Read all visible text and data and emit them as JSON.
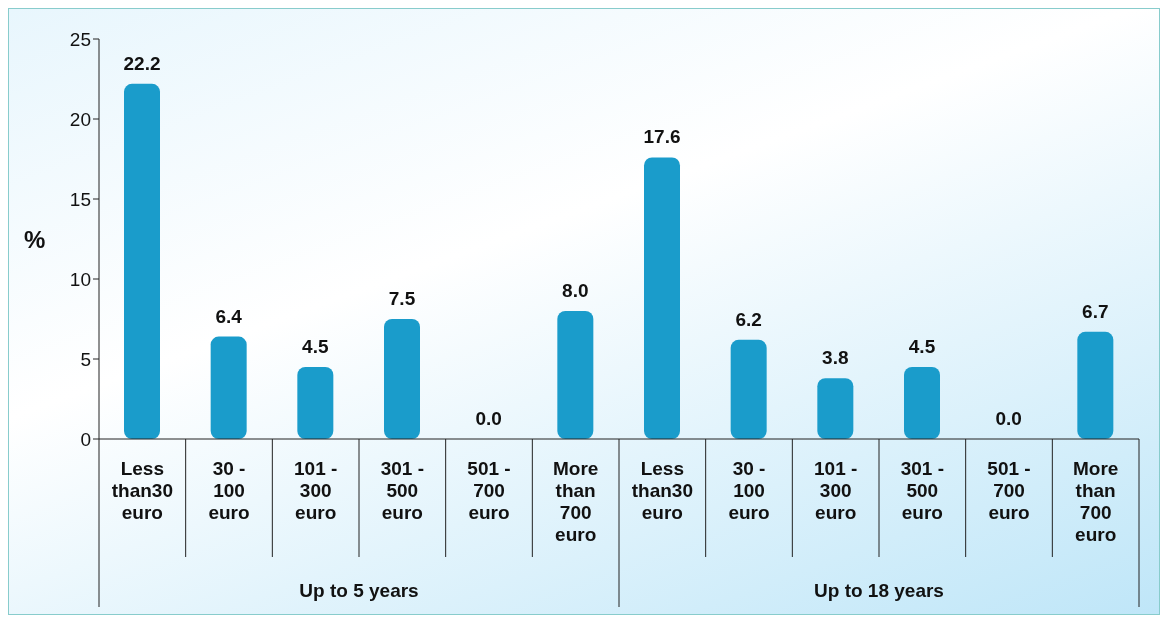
{
  "chart_data": {
    "type": "bar",
    "ylabel": "%",
    "categories": [
      "Less than30 euro",
      "30 - 100 euro",
      "101 - 300 euro",
      "301 - 500 euro",
      "501 - 700 euro",
      "More than 700 euro",
      "Less than30 euro",
      "30 - 100 euro",
      "101 - 300 euro",
      "301 - 500 euro",
      "501 - 700 euro",
      "More than 700 euro"
    ],
    "values": [
      22.2,
      6.4,
      4.5,
      7.5,
      0.0,
      8.0,
      17.6,
      6.2,
      3.8,
      4.5,
      0.0,
      6.7
    ],
    "color": "#1a9ccb",
    "ylim": [
      0,
      25
    ],
    "yticks": [
      0,
      5,
      10,
      15,
      20,
      25
    ],
    "value_labels": [
      "22.2",
      "6.4",
      "4.5",
      "7.5",
      "0.0",
      "8.0",
      "17.6",
      "6.2",
      "3.8",
      "4.5",
      "0.0",
      "6.7"
    ],
    "annotations": [
      "Up to 5 years",
      "Up to 18 years"
    ]
  }
}
